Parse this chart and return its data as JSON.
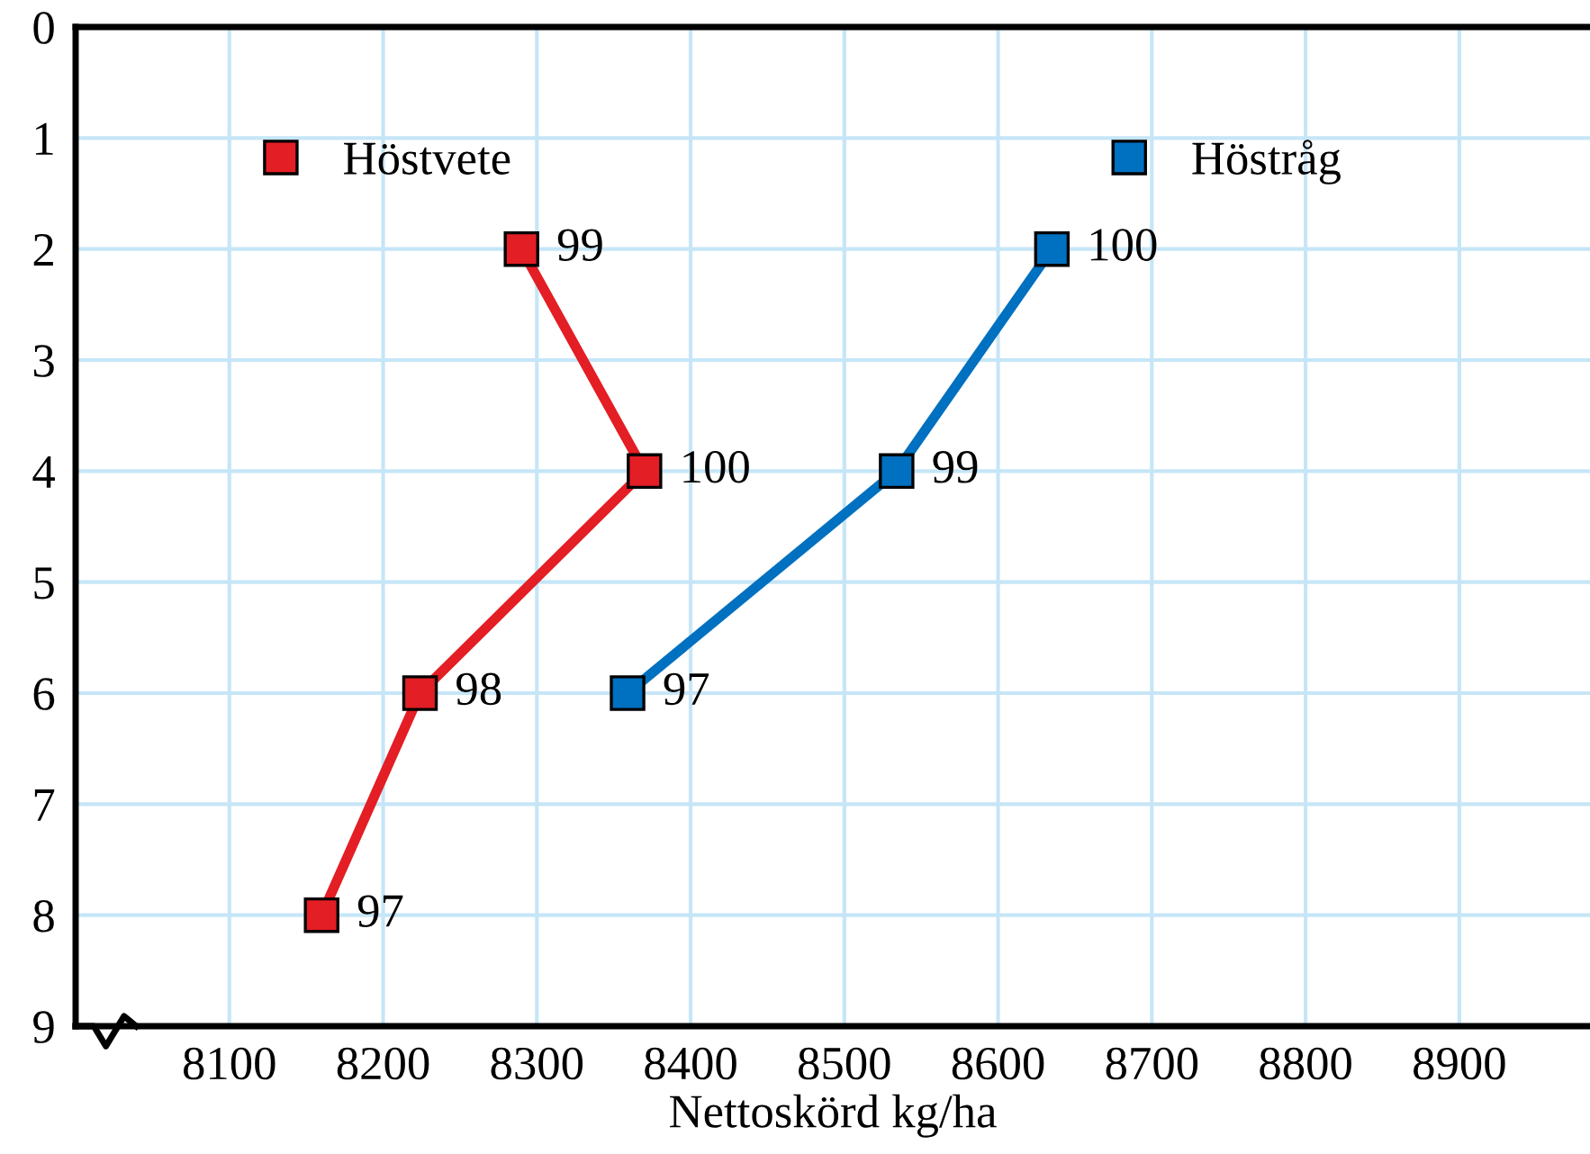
{
  "chart_data": {
    "type": "line",
    "xlabel": "Nettoskörd kg/ha",
    "xlim": [
      8000,
      8985
    ],
    "xticks": [
      8100,
      8200,
      8300,
      8400,
      8500,
      8600,
      8700,
      8800,
      8900
    ],
    "ylim": [
      9,
      0
    ],
    "yticks": [
      0,
      1,
      2,
      3,
      4,
      5,
      6,
      7,
      8,
      9
    ],
    "grid": true,
    "legend": "top",
    "marker": "square",
    "line_style": "solid",
    "series": [
      {
        "name": "Höstvete",
        "color": "#e31e24",
        "x": [
          8290,
          8370,
          8224,
          8160
        ],
        "values": [
          2,
          4,
          6,
          8
        ]
      },
      {
        "name": "Höstråg",
        "color": "#0070c0",
        "x": [
          8635,
          8534,
          8359
        ],
        "values": [
          2,
          4,
          6
        ]
      }
    ],
    "annotations": [
      {
        "text": "99",
        "x": 8290,
        "y": 2
      },
      {
        "text": "100",
        "x": 8370,
        "y": 4
      },
      {
        "text": "98",
        "x": 8224,
        "y": 6
      },
      {
        "text": "97",
        "x": 8160,
        "y": 8
      },
      {
        "text": "100",
        "x": 8635,
        "y": 2
      },
      {
        "text": "99",
        "x": 8534,
        "y": 4
      },
      {
        "text": "97",
        "x": 8359,
        "y": 6
      }
    ]
  }
}
